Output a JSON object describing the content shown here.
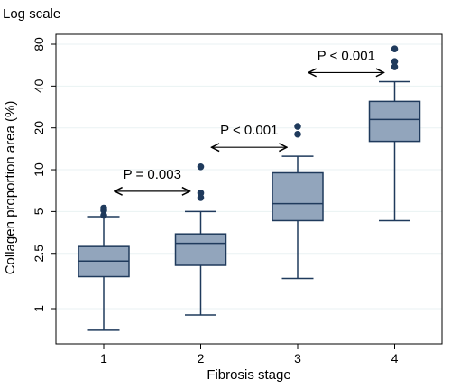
{
  "chart_data": {
    "type": "box",
    "note_label": "Log scale",
    "xlabel": "Fibrosis stage",
    "ylabel": "Collagen proportion area (%)",
    "y_scale": "log",
    "ylim": [
      0.6,
      100
    ],
    "y_ticks": [
      1,
      2.5,
      5,
      10,
      20,
      40,
      80
    ],
    "y_tick_labels": [
      "1",
      "2.5",
      "5",
      "10",
      "20",
      "40",
      "80"
    ],
    "categories": [
      "1",
      "2",
      "3",
      "4"
    ],
    "grid": true,
    "colors": {
      "box_fill": "#92a5bc",
      "box_stroke": "#1f3a5c",
      "outlier": "#1f3a5c",
      "grid": "#eaf2f3"
    },
    "boxes": [
      {
        "category": "1",
        "whisker_low": 0.7,
        "q1": 1.7,
        "median": 2.2,
        "q3": 2.8,
        "whisker_high": 4.6,
        "outliers": [
          4.7,
          5.1,
          5.3
        ]
      },
      {
        "category": "2",
        "whisker_low": 0.9,
        "q1": 2.05,
        "median": 2.95,
        "q3": 3.45,
        "whisker_high": 5.0,
        "outliers": [
          6.3,
          6.8,
          10.5
        ]
      },
      {
        "category": "3",
        "whisker_low": 1.65,
        "q1": 4.3,
        "median": 5.7,
        "q3": 9.5,
        "whisker_high": 12.5,
        "outliers": [
          18.0,
          20.5
        ]
      },
      {
        "category": "4",
        "whisker_low": 4.3,
        "q1": 16.0,
        "median": 23.0,
        "q3": 31.0,
        "whisker_high": 43.0,
        "outliers": [
          55,
          60,
          74
        ]
      }
    ],
    "annotations": [
      {
        "text": "P = 0.003",
        "from": "1",
        "to": "2",
        "y": 7.0
      },
      {
        "text": "P < 0.001",
        "from": "2",
        "to": "3",
        "y": 14.5
      },
      {
        "text": "P < 0.001",
        "from": "3",
        "to": "4",
        "y": 50.0
      }
    ]
  }
}
